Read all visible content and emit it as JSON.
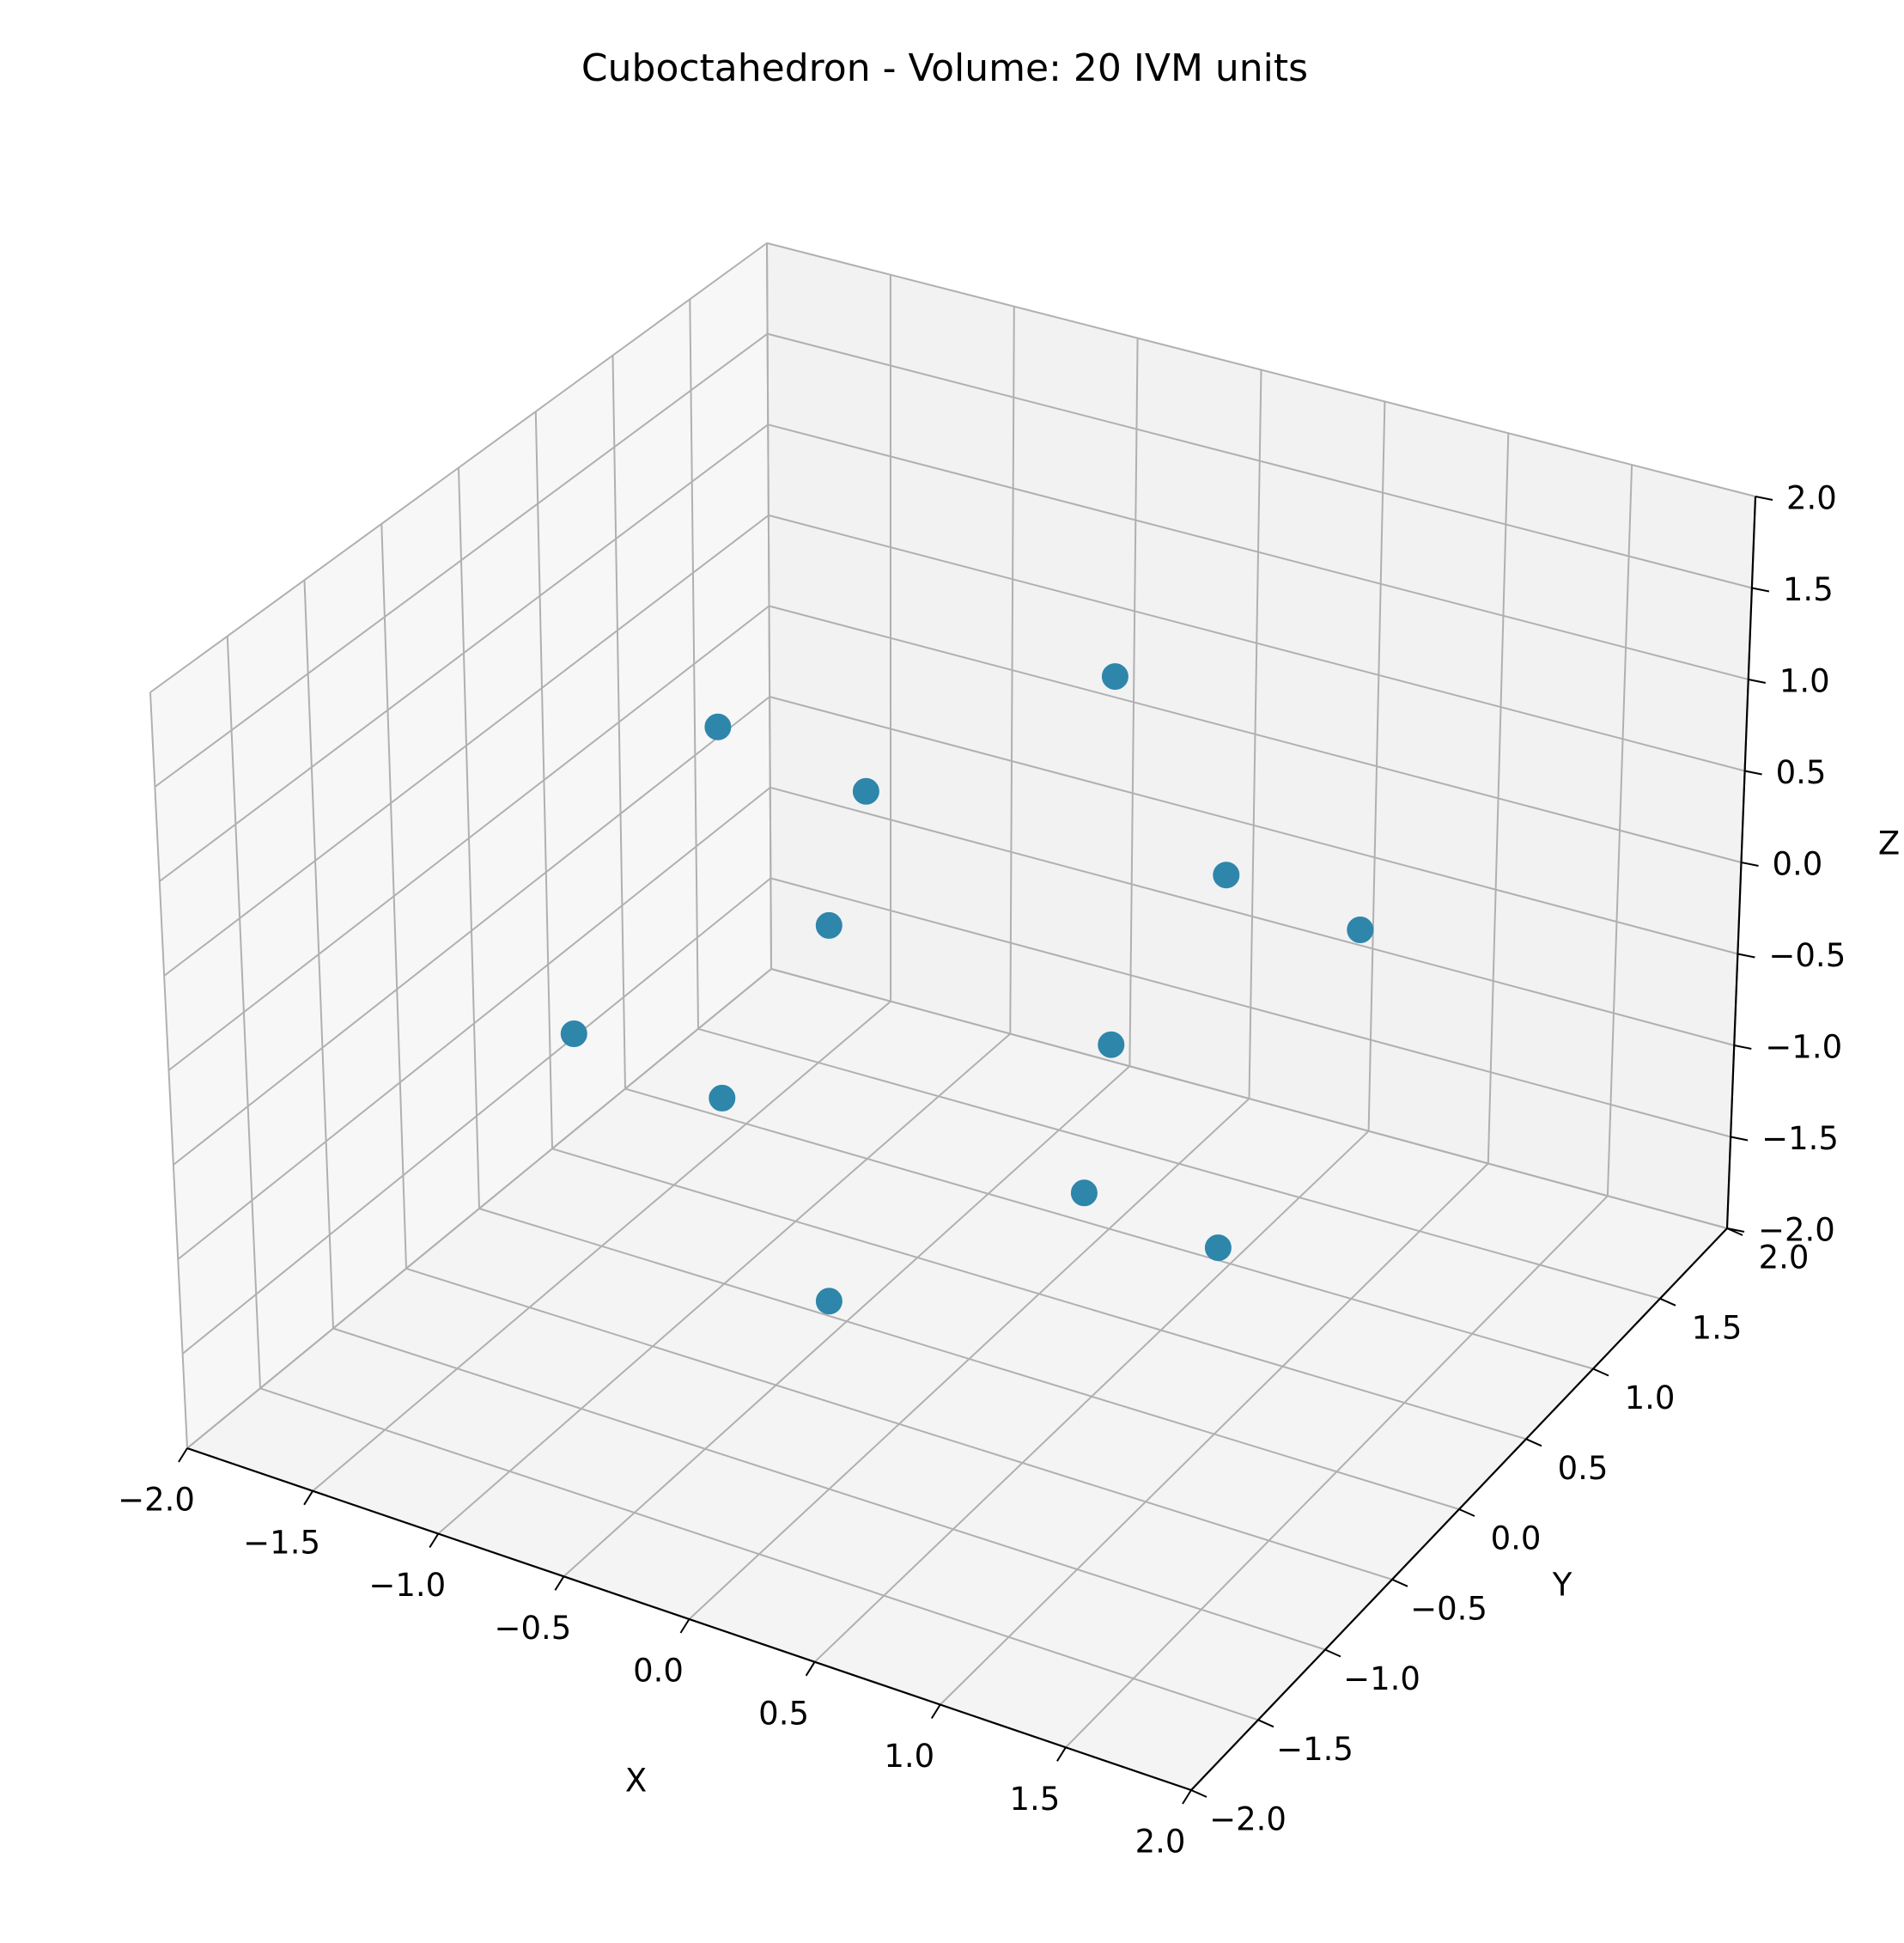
{
  "chart_data": {
    "type": "scatter",
    "title": "Cuboctahedron - Volume: 20 IVM units",
    "xlabel": "X",
    "ylabel": "Y",
    "zlabel": "Z",
    "xlim": [
      -2.0,
      2.0
    ],
    "ylim": [
      -2.0,
      2.0
    ],
    "zlim": [
      -2.0,
      2.0
    ],
    "ticks": {
      "x": [
        "−2.0",
        "−1.5",
        "−1.0",
        "−0.5",
        "0.0",
        "0.5",
        "1.0",
        "1.5",
        "2.0"
      ],
      "y": [
        "−2.0",
        "−1.5",
        "−1.0",
        "−0.5",
        "0.0",
        "0.5",
        "1.0",
        "1.5",
        "2.0"
      ],
      "z": [
        "−2.0",
        "−1.5",
        "−1.0",
        "−0.5",
        "0.0",
        "0.5",
        "1.0",
        "1.5",
        "2.0"
      ]
    },
    "grid": true,
    "marker_color": "#2e86ab",
    "points": [
      {
        "x": 1,
        "y": 1,
        "z": 0
      },
      {
        "x": 1,
        "y": -1,
        "z": 0
      },
      {
        "x": -1,
        "y": 1,
        "z": 0
      },
      {
        "x": -1,
        "y": -1,
        "z": 0
      },
      {
        "x": 1,
        "y": 0,
        "z": 1
      },
      {
        "x": 1,
        "y": 0,
        "z": -1
      },
      {
        "x": -1,
        "y": 0,
        "z": 1
      },
      {
        "x": -1,
        "y": 0,
        "z": -1
      },
      {
        "x": 0,
        "y": 1,
        "z": 1
      },
      {
        "x": 0,
        "y": 1,
        "z": -1
      },
      {
        "x": 0,
        "y": -1,
        "z": 1
      },
      {
        "x": 0,
        "y": -1,
        "z": -1
      }
    ]
  },
  "colors": {
    "pane_x": "#f2f2f2",
    "pane_y": "#f7f7f7",
    "pane_z": "#f4f4f4",
    "grid": "#b0b0b0",
    "axis_line": "#000000"
  }
}
